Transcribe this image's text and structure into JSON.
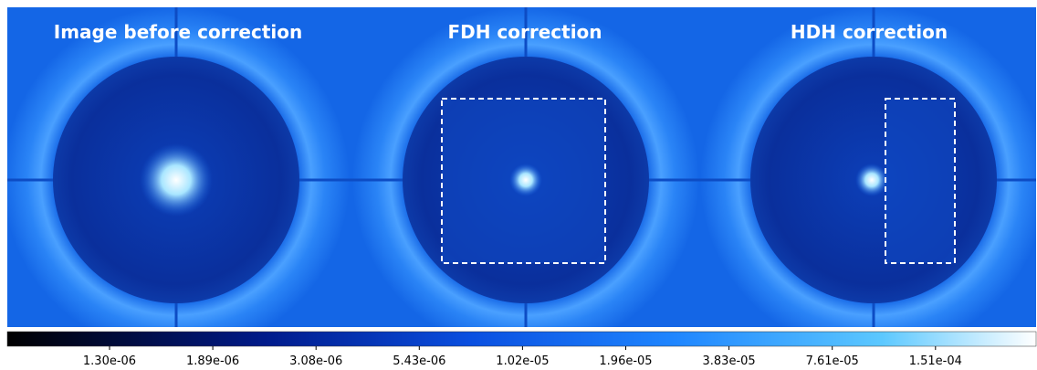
{
  "panels": [
    {
      "title": "Image before correction"
    },
    {
      "title": "FDH correction"
    },
    {
      "title": "HDH correction"
    }
  ],
  "colorbar": {
    "ticks": [
      "1.30e-06",
      "1.89e-06",
      "3.08e-06",
      "5.43e-06",
      "1.02e-05",
      "1.96e-05",
      "3.83e-05",
      "7.61e-05",
      "1.51e-04"
    ]
  }
}
